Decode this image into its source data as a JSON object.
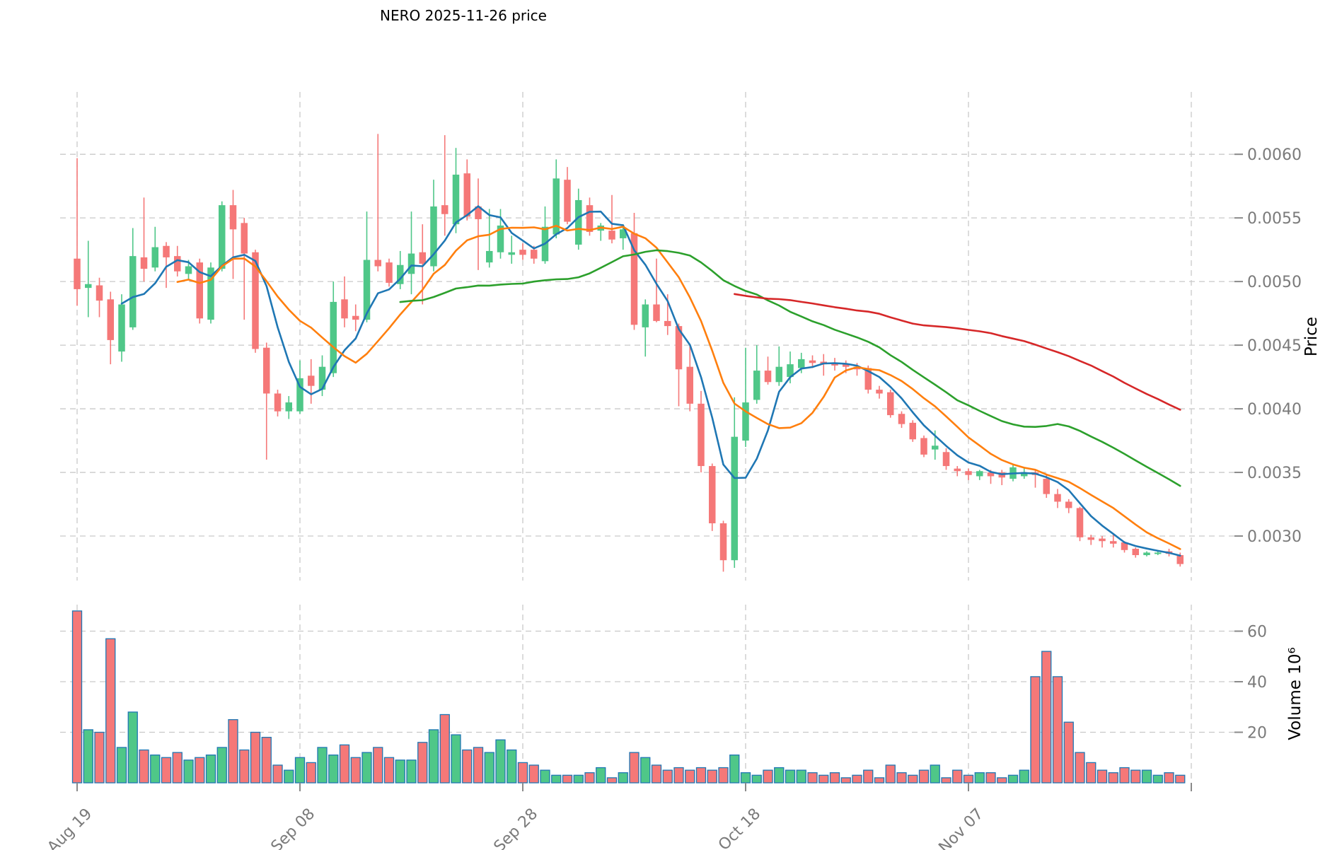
{
  "title": "NERO  2025-11-26  price",
  "chart_data": {
    "type": "candlestick",
    "title": "NERO  2025-11-26  price",
    "grid": true,
    "legend": "none",
    "x_axis": {
      "unit": "date",
      "tick_labels": [
        "Aug 19",
        "Sep 08",
        "Sep 28",
        "Oct 18",
        "Nov 07"
      ],
      "tick_day_indexes": [
        0,
        20,
        40,
        60,
        80
      ],
      "extra_gridline_days": [
        100
      ]
    },
    "y_axis_price": {
      "label": "Price",
      "side": "right",
      "tick_labels": [
        "0.0060",
        "0.0055",
        "0.0050",
        "0.0045",
        "0.0040",
        "0.0035",
        "0.0030"
      ],
      "tick_values": [
        0.006,
        0.0055,
        0.005,
        0.0045,
        0.004,
        0.0035,
        0.003
      ],
      "ylim": [
        0.00265,
        0.00649
      ]
    },
    "y_axis_volume": {
      "label": "Volume  10⁶",
      "side": "right",
      "tick_labels": [
        "20",
        "40",
        "60"
      ],
      "tick_values": [
        20,
        40,
        60
      ],
      "ylim": [
        0,
        70.5
      ]
    },
    "moving_averages": [
      {
        "name": "MAV5",
        "window": 5,
        "color": "#1f77b4"
      },
      {
        "name": "MAV10",
        "window": 10,
        "color": "#ff7f0e"
      },
      {
        "name": "MAV30",
        "window": 30,
        "color": "#2ca02c"
      },
      {
        "name": "MAV60",
        "window": 60,
        "color": "#d62728"
      }
    ],
    "colors": {
      "up": "#4fc788",
      "down": "#f57878",
      "volume_edge": "#1f77b4",
      "grid": "#c9c9c9",
      "tick_text": "#7a7a7a",
      "tick_mark": "#8a8a8a",
      "background": "#ffffff"
    },
    "dates": [
      "2025-08-19",
      "2025-08-20",
      "2025-08-21",
      "2025-08-22",
      "2025-08-23",
      "2025-08-24",
      "2025-08-25",
      "2025-08-26",
      "2025-08-27",
      "2025-08-28",
      "2025-08-29",
      "2025-08-30",
      "2025-08-31",
      "2025-09-01",
      "2025-09-02",
      "2025-09-03",
      "2025-09-04",
      "2025-09-05",
      "2025-09-06",
      "2025-09-07",
      "2025-09-08",
      "2025-09-09",
      "2025-09-10",
      "2025-09-11",
      "2025-09-12",
      "2025-09-13",
      "2025-09-14",
      "2025-09-15",
      "2025-09-16",
      "2025-09-17",
      "2025-09-18",
      "2025-09-19",
      "2025-09-20",
      "2025-09-21",
      "2025-09-22",
      "2025-09-23",
      "2025-09-24",
      "2025-09-25",
      "2025-09-26",
      "2025-09-27",
      "2025-09-28",
      "2025-09-29",
      "2025-09-30",
      "2025-10-01",
      "2025-10-02",
      "2025-10-03",
      "2025-10-04",
      "2025-10-05",
      "2025-10-06",
      "2025-10-07",
      "2025-10-08",
      "2025-10-09",
      "2025-10-10",
      "2025-10-11",
      "2025-10-12",
      "2025-10-13",
      "2025-10-14",
      "2025-10-15",
      "2025-10-16",
      "2025-10-17",
      "2025-10-18",
      "2025-10-19",
      "2025-10-20",
      "2025-10-21",
      "2025-10-22",
      "2025-10-23",
      "2025-10-24",
      "2025-10-25",
      "2025-10-26",
      "2025-10-27",
      "2025-10-28",
      "2025-10-29",
      "2025-10-30",
      "2025-10-31",
      "2025-11-01",
      "2025-11-02",
      "2025-11-03",
      "2025-11-04",
      "2025-11-05",
      "2025-11-06",
      "2025-11-07",
      "2025-11-08",
      "2025-11-09",
      "2025-11-10",
      "2025-11-11",
      "2025-11-12",
      "2025-11-13",
      "2025-11-14",
      "2025-11-15",
      "2025-11-16",
      "2025-11-17",
      "2025-11-18",
      "2025-11-19",
      "2025-11-20",
      "2025-11-21",
      "2025-11-22",
      "2025-11-23",
      "2025-11-24",
      "2025-11-25",
      "2025-11-26"
    ],
    "ohlc": [
      [
        0.00518,
        0.00597,
        0.00481,
        0.00494
      ],
      [
        0.00495,
        0.00532,
        0.00472,
        0.00498
      ],
      [
        0.00497,
        0.00503,
        0.00472,
        0.00485
      ],
      [
        0.00486,
        0.00492,
        0.00435,
        0.00454
      ],
      [
        0.00445,
        0.0049,
        0.00437,
        0.00482
      ],
      [
        0.00464,
        0.00542,
        0.00462,
        0.0052
      ],
      [
        0.00519,
        0.00566,
        0.005,
        0.0051
      ],
      [
        0.00511,
        0.00543,
        0.00508,
        0.00527
      ],
      [
        0.00528,
        0.00531,
        0.00495,
        0.00519
      ],
      [
        0.0052,
        0.00528,
        0.00504,
        0.00508
      ],
      [
        0.00506,
        0.00517,
        0.00502,
        0.00512
      ],
      [
        0.00515,
        0.00518,
        0.00467,
        0.00471
      ],
      [
        0.0047,
        0.00515,
        0.00467,
        0.00511
      ],
      [
        0.0051,
        0.00563,
        0.00508,
        0.0056
      ],
      [
        0.0056,
        0.00572,
        0.00502,
        0.00541
      ],
      [
        0.00546,
        0.0055,
        0.0047,
        0.00522
      ],
      [
        0.00523,
        0.00525,
        0.00444,
        0.00447
      ],
      [
        0.00448,
        0.00452,
        0.0036,
        0.00412
      ],
      [
        0.00412,
        0.00415,
        0.00394,
        0.00398
      ],
      [
        0.00398,
        0.0041,
        0.00392,
        0.00405
      ],
      [
        0.00398,
        0.00438,
        0.00396,
        0.00424
      ],
      [
        0.00426,
        0.00439,
        0.00404,
        0.00418
      ],
      [
        0.00415,
        0.00442,
        0.0041,
        0.00433
      ],
      [
        0.00428,
        0.005,
        0.00425,
        0.00484
      ],
      [
        0.00486,
        0.00504,
        0.00464,
        0.00471
      ],
      [
        0.00473,
        0.00482,
        0.00461,
        0.0047
      ],
      [
        0.0047,
        0.00555,
        0.00468,
        0.00517
      ],
      [
        0.00517,
        0.00616,
        0.00508,
        0.00512
      ],
      [
        0.00515,
        0.00518,
        0.00496,
        0.00499
      ],
      [
        0.00498,
        0.00524,
        0.00494,
        0.00513
      ],
      [
        0.00506,
        0.00555,
        0.0049,
        0.00522
      ],
      [
        0.00523,
        0.00545,
        0.00482,
        0.00514
      ],
      [
        0.00512,
        0.0058,
        0.00508,
        0.00559
      ],
      [
        0.0056,
        0.00615,
        0.00536,
        0.00553
      ],
      [
        0.00545,
        0.00605,
        0.00538,
        0.00584
      ],
      [
        0.00585,
        0.00596,
        0.00548,
        0.00551
      ],
      [
        0.00559,
        0.00581,
        0.00509,
        0.00549
      ],
      [
        0.00515,
        0.00557,
        0.00511,
        0.00524
      ],
      [
        0.00523,
        0.00557,
        0.00518,
        0.00544
      ],
      [
        0.00521,
        0.00536,
        0.00514,
        0.00523
      ],
      [
        0.00525,
        0.0053,
        0.00517,
        0.00521
      ],
      [
        0.00525,
        0.00528,
        0.00514,
        0.00518
      ],
      [
        0.00516,
        0.00559,
        0.00514,
        0.00543
      ],
      [
        0.00537,
        0.00596,
        0.00534,
        0.00581
      ],
      [
        0.0058,
        0.0059,
        0.00545,
        0.00547
      ],
      [
        0.00529,
        0.00573,
        0.00525,
        0.00564
      ],
      [
        0.0056,
        0.00566,
        0.00536,
        0.00539
      ],
      [
        0.0054,
        0.00546,
        0.00532,
        0.00544
      ],
      [
        0.0054,
        0.00568,
        0.0053,
        0.00533
      ],
      [
        0.00534,
        0.00545,
        0.00525,
        0.00541
      ],
      [
        0.00538,
        0.00554,
        0.00462,
        0.00466
      ],
      [
        0.00464,
        0.00486,
        0.00441,
        0.00482
      ],
      [
        0.00482,
        0.00518,
        0.00468,
        0.00469
      ],
      [
        0.00469,
        0.0049,
        0.00458,
        0.00465
      ],
      [
        0.00465,
        0.00467,
        0.00402,
        0.00431
      ],
      [
        0.00433,
        0.0045,
        0.00398,
        0.00404
      ],
      [
        0.00404,
        0.00414,
        0.0035,
        0.00355
      ],
      [
        0.00355,
        0.00357,
        0.00304,
        0.0031
      ],
      [
        0.0031,
        0.00312,
        0.00272,
        0.00281
      ],
      [
        0.00281,
        0.00409,
        0.00275,
        0.00378
      ],
      [
        0.00375,
        0.00448,
        0.0037,
        0.00405
      ],
      [
        0.00407,
        0.0045,
        0.00404,
        0.0043
      ],
      [
        0.0043,
        0.00441,
        0.00419,
        0.00421
      ],
      [
        0.00421,
        0.00449,
        0.00418,
        0.00433
      ],
      [
        0.00425,
        0.00445,
        0.0042,
        0.00435
      ],
      [
        0.00432,
        0.00444,
        0.00428,
        0.00439
      ],
      [
        0.00438,
        0.00442,
        0.00432,
        0.00436
      ],
      [
        0.00437,
        0.00443,
        0.00426,
        0.00435
      ],
      [
        0.00436,
        0.0044,
        0.0043,
        0.00434
      ],
      [
        0.00435,
        0.00438,
        0.00428,
        0.00433
      ],
      [
        0.00433,
        0.00436,
        0.00426,
        0.00431
      ],
      [
        0.00432,
        0.00434,
        0.00412,
        0.00415
      ],
      [
        0.00415,
        0.00418,
        0.00408,
        0.00412
      ],
      [
        0.00413,
        0.00415,
        0.00393,
        0.00395
      ],
      [
        0.00396,
        0.00398,
        0.00385,
        0.00388
      ],
      [
        0.00389,
        0.00391,
        0.00374,
        0.00376
      ],
      [
        0.00377,
        0.00379,
        0.00362,
        0.00364
      ],
      [
        0.00368,
        0.00383,
        0.0036,
        0.00371
      ],
      [
        0.00366,
        0.00369,
        0.00352,
        0.00355
      ],
      [
        0.00353,
        0.00355,
        0.00347,
        0.00351
      ],
      [
        0.00351,
        0.00353,
        0.00344,
        0.00348
      ],
      [
        0.00347,
        0.00352,
        0.00344,
        0.00351
      ],
      [
        0.0035,
        0.00352,
        0.00341,
        0.00347
      ],
      [
        0.0035,
        0.00352,
        0.0034,
        0.00346
      ],
      [
        0.00345,
        0.00356,
        0.00343,
        0.00354
      ],
      [
        0.00347,
        0.00354,
        0.00345,
        0.0035
      ],
      [
        0.0035,
        0.00352,
        0.00338,
        0.00348
      ],
      [
        0.00345,
        0.00349,
        0.0033,
        0.00333
      ],
      [
        0.00333,
        0.00337,
        0.00322,
        0.00327
      ],
      [
        0.00327,
        0.00329,
        0.00318,
        0.00322
      ],
      [
        0.00322,
        0.00323,
        0.00296,
        0.00299
      ],
      [
        0.00299,
        0.00301,
        0.00293,
        0.00297
      ],
      [
        0.00298,
        0.003,
        0.00291,
        0.00296
      ],
      [
        0.00296,
        0.00301,
        0.00291,
        0.00294
      ],
      [
        0.00295,
        0.00296,
        0.00287,
        0.00289
      ],
      [
        0.0029,
        0.00291,
        0.00283,
        0.00285
      ],
      [
        0.00285,
        0.00288,
        0.00284,
        0.00287
      ],
      [
        0.00286,
        0.00288,
        0.00285,
        0.00287
      ],
      [
        0.00288,
        0.0029,
        0.00284,
        0.00286
      ],
      [
        0.00285,
        0.00287,
        0.00276,
        0.00278
      ]
    ],
    "volume_millions": [
      68,
      21,
      20,
      57,
      14,
      28,
      13,
      11,
      10,
      12,
      9,
      10,
      11,
      14,
      25,
      13,
      20,
      18,
      7,
      5,
      10,
      8,
      14,
      11,
      15,
      10,
      12,
      14,
      10,
      9,
      9,
      16,
      21,
      27,
      19,
      13,
      14,
      12,
      17,
      13,
      8,
      7,
      5,
      3,
      3,
      3,
      4,
      6,
      2,
      4,
      12,
      10,
      7,
      5,
      6,
      5,
      6,
      5,
      6,
      11,
      4,
      3,
      5,
      6,
      5,
      5,
      4,
      3,
      4,
      2,
      3,
      5,
      2,
      7,
      4,
      3,
      5,
      7,
      2,
      5,
      3,
      4,
      4,
      2,
      3,
      5,
      42,
      52,
      42,
      24,
      12,
      8,
      5,
      4,
      6,
      5,
      5,
      3,
      4,
      3
    ]
  }
}
